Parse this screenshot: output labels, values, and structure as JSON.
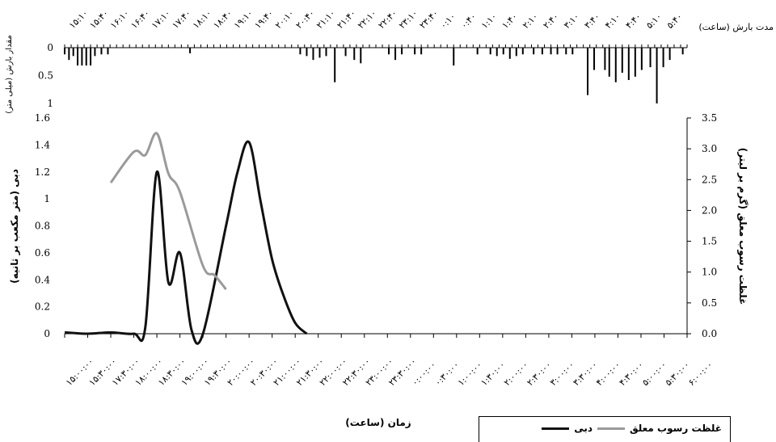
{
  "chart_data": [
    {
      "type": "bar",
      "panel": "rainfall",
      "ylabel": "مقدار بارش (میلی متر)",
      "xlabel": "مدت بارش (ساعت)",
      "ylim": [
        0,
        1
      ],
      "yticks": [
        "0",
        "0.5",
        "1"
      ],
      "inverted_y": true,
      "categories": [
        "۱۵:۱۰",
        "۱۵:۴۰",
        "۱۶:۱۰",
        "۱۶:۴۰",
        "۱۷:۱۰",
        "۱۷:۴۰",
        "۱۸:۱۰",
        "۱۸:۴۰",
        "۱۹:۱۰",
        "۱۹:۴۰",
        "۲۰:۱۰",
        "۲۰:۴۰",
        "۲۱:۱۰",
        "۲۱:۴۰",
        "۲۲:۱۰",
        "۲۲:۴۰",
        "۲۳:۱۰",
        "۲۳:۴۰",
        "۰:۱۰",
        "۰:۴۰",
        "۱:۱۰",
        "۱:۴۰",
        "۲:۱۰",
        "۲:۴۰",
        "۳:۱۰",
        "۳:۴۰",
        "۴:۱۰",
        "۴:۴۰",
        "۵:۱۰",
        "۵:۴۰"
      ],
      "bars": [
        {
          "t": 0.0,
          "v": 0.12
        },
        {
          "t": 0.1,
          "v": 0.22
        },
        {
          "t": 0.2,
          "v": 0.15
        },
        {
          "t": 0.3,
          "v": 0.32
        },
        {
          "t": 0.4,
          "v": 0.32
        },
        {
          "t": 0.5,
          "v": 0.32
        },
        {
          "t": 0.6,
          "v": 0.32
        },
        {
          "t": 0.7,
          "v": 0.15
        },
        {
          "t": 0.85,
          "v": 0.12
        },
        {
          "t": 1.0,
          "v": 0.12
        },
        {
          "t": 2.9,
          "v": 0.1
        },
        {
          "t": 5.45,
          "v": 0.12
        },
        {
          "t": 5.6,
          "v": 0.15
        },
        {
          "t": 5.75,
          "v": 0.22
        },
        {
          "t": 5.9,
          "v": 0.18
        },
        {
          "t": 6.05,
          "v": 0.15
        },
        {
          "t": 6.25,
          "v": 0.62
        },
        {
          "t": 6.5,
          "v": 0.15
        },
        {
          "t": 6.7,
          "v": 0.22
        },
        {
          "t": 6.85,
          "v": 0.28
        },
        {
          "t": 7.5,
          "v": 0.12
        },
        {
          "t": 7.65,
          "v": 0.22
        },
        {
          "t": 7.8,
          "v": 0.12
        },
        {
          "t": 8.1,
          "v": 0.12
        },
        {
          "t": 8.25,
          "v": 0.12
        },
        {
          "t": 9.0,
          "v": 0.32
        },
        {
          "t": 9.55,
          "v": 0.12
        },
        {
          "t": 9.85,
          "v": 0.12
        },
        {
          "t": 10.0,
          "v": 0.15
        },
        {
          "t": 10.15,
          "v": 0.12
        },
        {
          "t": 10.3,
          "v": 0.2
        },
        {
          "t": 10.45,
          "v": 0.15
        },
        {
          "t": 10.6,
          "v": 0.12
        },
        {
          "t": 10.85,
          "v": 0.12
        },
        {
          "t": 11.05,
          "v": 0.12
        },
        {
          "t": 11.25,
          "v": 0.12
        },
        {
          "t": 11.4,
          "v": 0.12
        },
        {
          "t": 11.6,
          "v": 0.12
        },
        {
          "t": 11.75,
          "v": 0.12
        },
        {
          "t": 12.1,
          "v": 0.85
        },
        {
          "t": 12.25,
          "v": 0.4
        },
        {
          "t": 12.5,
          "v": 0.4
        },
        {
          "t": 12.6,
          "v": 0.52
        },
        {
          "t": 12.75,
          "v": 0.62
        },
        {
          "t": 12.9,
          "v": 0.45
        },
        {
          "t": 13.05,
          "v": 0.58
        },
        {
          "t": 13.2,
          "v": 0.52
        },
        {
          "t": 13.35,
          "v": 0.4
        },
        {
          "t": 13.55,
          "v": 0.35
        },
        {
          "t": 13.7,
          "v": 1.0
        },
        {
          "t": 13.85,
          "v": 0.35
        },
        {
          "t": 14.0,
          "v": 0.22
        },
        {
          "t": 14.3,
          "v": 0.12
        }
      ]
    },
    {
      "type": "line",
      "panel": "hydrograph",
      "xlabel": "زمان (ساعت)",
      "ylabel": "دبی (متر مکعب بر ثانیه)",
      "ylabel_right": "غلظت رسوب معلق (گرم بر لیتر)",
      "ylim": [
        0,
        1.6
      ],
      "ylim_right": [
        0,
        3.5
      ],
      "yticks": [
        "0",
        "0.2",
        "0.4",
        "0.6",
        "0.8",
        "1",
        "1.2",
        "1.4",
        "1.6"
      ],
      "yticks_right": [
        "0.0",
        "0.5",
        "1.0",
        "1.5",
        "2.0",
        "2.5",
        "3.0",
        "3.5"
      ],
      "categories": [
        "۱۵:۰۰:۰۰",
        "۱۵:۳۰:۰۰",
        "۱۷:۳۰:۰۰",
        "۱۸:۰۰:۰۰",
        "۱۸:۳۰:۰۰",
        "۱۹:۰۰:۰۰",
        "۱۹:۳۰:۰۰",
        "۲۰:۰۰:۰۰",
        "۲۰:۳۰:۰۰",
        "۲۱:۰۰:۰۰",
        "۲۱:۳۰:۰۰",
        "۲۲:۰۰:۰۰",
        "۲۲:۳۰:۰۰",
        "۲۳:۰۰:۰۰",
        "۲۳:۳۰:۰۰",
        "۰:۰۰:۰۰",
        "۰:۳۰:۰۰",
        "۱:۰۰:۰۰",
        "۱:۳۰:۰۰",
        "۲:۰۰:۰۰",
        "۲:۳۰:۰۰",
        "۳:۰۰:۰۰",
        "۳:۳۰:۰۰",
        "۴:۰۰:۰۰",
        "۴:۳۰:۰۰",
        "۵:۰۰:۰۰",
        "۵:۳۰:۰۰",
        "۶:۰۰:۰۰"
      ],
      "series": [
        {
          "name": "دبی",
          "axis": "left",
          "color": "#111111",
          "points": [
            [
              0,
              0.01
            ],
            [
              1,
              0.0
            ],
            [
              2,
              0.01
            ],
            [
              3,
              0.0
            ],
            [
              3.5,
              0.05
            ],
            [
              4,
              1.2
            ],
            [
              4.5,
              0.38
            ],
            [
              5,
              0.6
            ],
            [
              5.5,
              0.03
            ],
            [
              6,
              0.0
            ],
            [
              7,
              0.8
            ],
            [
              7.5,
              1.2
            ],
            [
              8,
              1.42
            ],
            [
              8.5,
              0.98
            ],
            [
              9,
              0.55
            ],
            [
              9.5,
              0.28
            ],
            [
              10,
              0.08
            ],
            [
              10.5,
              0.0
            ]
          ]
        },
        {
          "name": "غلظت رسوب معلق",
          "axis": "right",
          "color": "#9a9a9a",
          "points": [
            [
              2,
              2.45
            ],
            [
              3,
              2.95
            ],
            [
              3.5,
              2.9
            ],
            [
              4,
              3.25
            ],
            [
              4.5,
              2.6
            ],
            [
              5,
              2.3
            ],
            [
              6,
              1.1
            ],
            [
              6.5,
              0.95
            ],
            [
              7,
              0.72
            ]
          ]
        }
      ]
    }
  ]
}
